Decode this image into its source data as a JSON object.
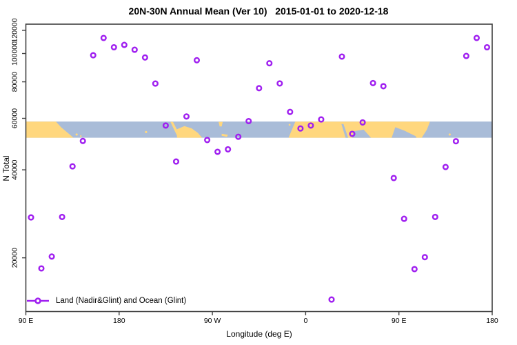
{
  "chart_data": {
    "type": "scatter",
    "title": "20N-30N Annual Mean (Ver 10)   2015-01-01 to 2020-12-18",
    "xlabel": "Longitude (deg E)",
    "ylabel": "N Total",
    "grid": false,
    "legend_position": "bottom-left-inside",
    "x_axis": {
      "lim": [
        90,
        540
      ],
      "note": "longitude wraps eastward from 90E through 180, 90W, 0, 90E to 180",
      "ticks": [
        {
          "v": 90,
          "label": "90 E"
        },
        {
          "v": 180,
          "label": "180"
        },
        {
          "v": 270,
          "label": "90 W"
        },
        {
          "v": 360,
          "label": "0"
        },
        {
          "v": 450,
          "label": "90 E"
        },
        {
          "v": 540,
          "label": "180"
        }
      ]
    },
    "y_axis": {
      "scale": "log10",
      "lim": [
        13100,
        126000
      ],
      "ticks": [
        {
          "v": 20000,
          "label": "20000"
        },
        {
          "v": 40000,
          "label": "40000"
        },
        {
          "v": 60000,
          "label": "60000"
        },
        {
          "v": 80000,
          "label": "80000"
        },
        {
          "v": 100000,
          "label": "100000"
        },
        {
          "v": 120000,
          "label": "120000"
        }
      ]
    },
    "series": [
      {
        "name": "Land (Nadir&Glint) and Ocean (Glint)",
        "marker": "open-circle",
        "color": "#A020F0",
        "points": [
          {
            "lon": 95,
            "n": 27500
          },
          {
            "lon": 105,
            "n": 18400
          },
          {
            "lon": 115,
            "n": 20200
          },
          {
            "lon": 125,
            "n": 27600
          },
          {
            "lon": 135,
            "n": 41100
          },
          {
            "lon": 145,
            "n": 50200
          },
          {
            "lon": 155,
            "n": 98600
          },
          {
            "lon": 165,
            "n": 113000
          },
          {
            "lon": 175,
            "n": 105000
          },
          {
            "lon": 185,
            "n": 107000
          },
          {
            "lon": 195,
            "n": 103000
          },
          {
            "lon": 205,
            "n": 96900
          },
          {
            "lon": 215,
            "n": 78900
          },
          {
            "lon": 225,
            "n": 56700
          },
          {
            "lon": 235,
            "n": 42700
          },
          {
            "lon": 245,
            "n": 60900
          },
          {
            "lon": 255,
            "n": 94800
          },
          {
            "lon": 265,
            "n": 50600
          },
          {
            "lon": 275,
            "n": 46100
          },
          {
            "lon": 285,
            "n": 47000
          },
          {
            "lon": 295,
            "n": 51900
          },
          {
            "lon": 305,
            "n": 58700
          },
          {
            "lon": 315,
            "n": 76100
          },
          {
            "lon": 325,
            "n": 92600
          },
          {
            "lon": 335,
            "n": 79000
          },
          {
            "lon": 345,
            "n": 63100
          },
          {
            "lon": 355,
            "n": 55400
          },
          {
            "lon": 365,
            "n": 56700
          },
          {
            "lon": 375,
            "n": 59500
          },
          {
            "lon": 385,
            "n": 14400
          },
          {
            "lon": 395,
            "n": 97600
          },
          {
            "lon": 405,
            "n": 53100
          },
          {
            "lon": 415,
            "n": 58100
          },
          {
            "lon": 425,
            "n": 79200
          },
          {
            "lon": 435,
            "n": 77300
          },
          {
            "lon": 445,
            "n": 37500
          },
          {
            "lon": 455,
            "n": 27200
          },
          {
            "lon": 465,
            "n": 18300
          },
          {
            "lon": 475,
            "n": 20100
          },
          {
            "lon": 485,
            "n": 27600
          },
          {
            "lon": 495,
            "n": 40900
          },
          {
            "lon": 505,
            "n": 50100
          },
          {
            "lon": 515,
            "n": 98100
          },
          {
            "lon": 525,
            "n": 113000
          },
          {
            "lon": 535,
            "n": 105000
          }
        ]
      }
    ],
    "map_band": {
      "description": "world-map strip of the 20N-30N latitude band drawn across the plot",
      "value_range": [
        51500,
        58500
      ],
      "ocean_color": "#A9BCD8",
      "land_color": "#FFD77E",
      "land_shapes": [
        {
          "type": "poly",
          "pts": [
            [
              90,
              0
            ],
            [
              119,
              0
            ],
            [
              124,
              0.35
            ],
            [
              136,
              1
            ],
            [
              90,
              1
            ]
          ]
        },
        {
          "type": "dot",
          "lon": 139,
          "frac": 0.8,
          "r": 1.6
        },
        {
          "type": "dot",
          "lon": 143,
          "frac": 0.9,
          "r": 1.2
        },
        {
          "type": "dot",
          "lon": 206,
          "frac": 0.65,
          "r": 1.6
        },
        {
          "type": "poly",
          "pts": [
            [
              229.5,
              0.02
            ],
            [
              232,
              0.02
            ],
            [
              238,
              0.78
            ],
            [
              235.5,
              0.82
            ]
          ]
        },
        {
          "type": "poly",
          "pts": [
            [
              235,
              0.5
            ],
            [
              243,
              0.28
            ],
            [
              250,
              0.42
            ],
            [
              256,
              0.7
            ],
            [
              260,
              1
            ],
            [
              236,
              1
            ]
          ]
        },
        {
          "type": "poly",
          "pts": [
            [
              276,
              0.02
            ],
            [
              280,
              0.02
            ],
            [
              279,
              0.3
            ],
            [
              277,
              0.3
            ]
          ]
        },
        {
          "type": "poly",
          "pts": [
            [
              279,
              0.75
            ],
            [
              285,
              0.82
            ],
            [
              284,
              0.95
            ],
            [
              279,
              0.88
            ]
          ]
        },
        {
          "type": "dot",
          "lon": 344.5,
          "frac": 0.2,
          "r": 1.4
        },
        {
          "type": "poly",
          "pts": [
            [
              343.5,
              1
            ],
            [
              350,
              0
            ],
            [
              480,
              0
            ],
            [
              477,
              0.5
            ],
            [
              472,
              1
            ]
          ]
        },
        {
          "type": "dot",
          "lon": 499,
          "frac": 0.8,
          "r": 1.6
        }
      ],
      "water_shapes": [
        {
          "type": "poly",
          "pts": [
            [
              394.5,
              0.15
            ],
            [
              396.5,
              0.15
            ],
            [
              401,
              1
            ],
            [
              398.5,
              1
            ]
          ]
        },
        {
          "type": "poly",
          "pts": [
            [
              406,
              0.6
            ],
            [
              416,
              0.5
            ],
            [
              423,
              1
            ],
            [
              405,
              1
            ]
          ]
        },
        {
          "type": "poly",
          "pts": [
            [
              443,
              1
            ],
            [
              446.5,
              0.35
            ],
            [
              455,
              0.55
            ],
            [
              466,
              0.9
            ],
            [
              467,
              1
            ]
          ]
        }
      ]
    }
  },
  "legend": {
    "label": "Land (Nadir&Glint) and Ocean (Glint)",
    "marker_color": "#A020F0"
  },
  "frame": {
    "border_color": "#404040",
    "tick_color": "#404040",
    "tick_label_color": "#000000"
  }
}
